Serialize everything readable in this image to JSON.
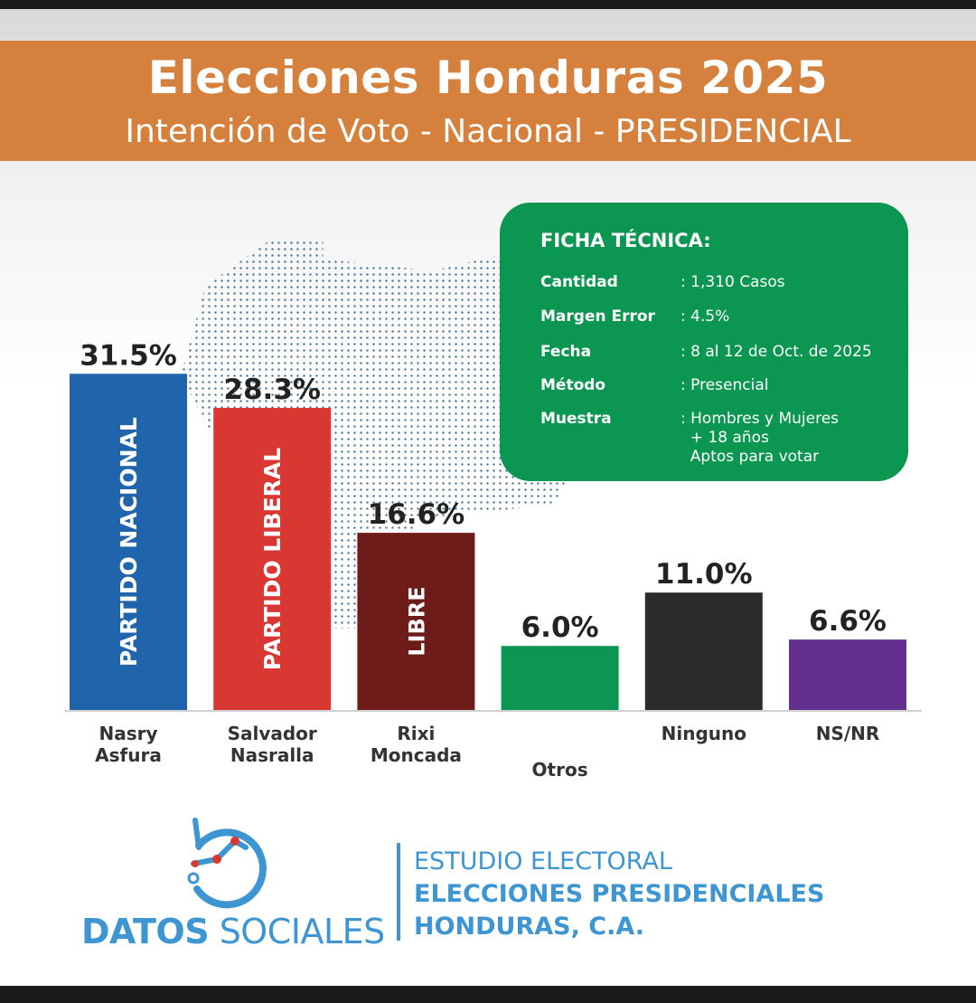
{
  "header": {
    "title": "Elecciones Honduras 2025",
    "subtitle": "Intención de Voto - Nacional - PRESIDENCIAL"
  },
  "ficha": {
    "title": "FICHA TÉCNICA:",
    "rows": [
      {
        "label": "Cantidad",
        "value": ": 1,310 Casos"
      },
      {
        "label": "Margen Error",
        "value": ": 4.5%"
      },
      {
        "label": "Fecha",
        "value": ": 8 al 12 de Oct. de 2025"
      },
      {
        "label": "Método",
        "value": ": Presencial"
      },
      {
        "label": "Muestra",
        "value": ": Hombres y Mujeres\n  + 18 años\n  Aptos para votar"
      }
    ]
  },
  "chart_data": {
    "type": "bar",
    "title": "Intención de Voto - Nacional - PRESIDENCIAL",
    "categories": [
      "Nasry Asfura",
      "Salvador Nasralla",
      "Rixi Moncada",
      "Otros",
      "Ninguno",
      "NS/NR"
    ],
    "category_lines": [
      [
        "Nasry",
        "Asfura"
      ],
      [
        "Salvador",
        "Nasralla"
      ],
      [
        "Rixi",
        "Moncada"
      ],
      [
        "Otros"
      ],
      [
        "Ninguno"
      ],
      [
        "NS/NR"
      ]
    ],
    "values": [
      31.5,
      28.3,
      16.6,
      6.0,
      11.0,
      6.6
    ],
    "value_labels": [
      "31.5%",
      "28.3%",
      "16.6%",
      "6.0%",
      "11.0%",
      "6.6%"
    ],
    "party_labels": [
      "PARTIDO NACIONAL",
      "PARTIDO LIBERAL",
      "LIBRE",
      "",
      "",
      ""
    ],
    "colors": [
      "#2064ac",
      "#d93732",
      "#6e1c1a",
      "#0b9651",
      "#2b2b2b",
      "#63308f"
    ],
    "xlabel": "",
    "ylabel": "",
    "unit": "%",
    "grid": false,
    "legend": "none"
  },
  "footer": {
    "logo_text_bold": "DATOS",
    "logo_text_light": " SOCIALES",
    "study_line1": "ESTUDIO ELECTORAL",
    "study_line2": "ELECCIONES PRESIDENCIALES",
    "study_line3": "HONDURAS, C.A."
  }
}
